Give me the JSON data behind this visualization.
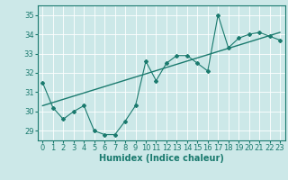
{
  "title": "",
  "xlabel": "Humidex (Indice chaleur)",
  "ylabel": "",
  "xlim": [
    -0.5,
    23.5
  ],
  "ylim": [
    28.5,
    35.5
  ],
  "yticks": [
    29,
    30,
    31,
    32,
    33,
    34,
    35
  ],
  "xticks": [
    0,
    1,
    2,
    3,
    4,
    5,
    6,
    7,
    8,
    9,
    10,
    11,
    12,
    13,
    14,
    15,
    16,
    17,
    18,
    19,
    20,
    21,
    22,
    23
  ],
  "x_data": [
    0,
    1,
    2,
    3,
    4,
    5,
    6,
    7,
    8,
    9,
    10,
    11,
    12,
    13,
    14,
    15,
    16,
    17,
    18,
    19,
    20,
    21,
    22,
    23
  ],
  "y_data": [
    31.5,
    30.2,
    29.6,
    30.0,
    30.3,
    29.0,
    28.8,
    28.8,
    29.5,
    30.3,
    32.6,
    31.6,
    32.5,
    32.9,
    32.9,
    32.5,
    32.1,
    35.0,
    33.3,
    33.8,
    34.0,
    34.1,
    33.9,
    33.7
  ],
  "trend_x": [
    0,
    23
  ],
  "trend_y": [
    30.3,
    34.1
  ],
  "line_color": "#1a7a6e",
  "bg_color": "#cce8e8",
  "grid_color": "#ffffff",
  "tick_fontsize": 6,
  "xlabel_fontsize": 7
}
